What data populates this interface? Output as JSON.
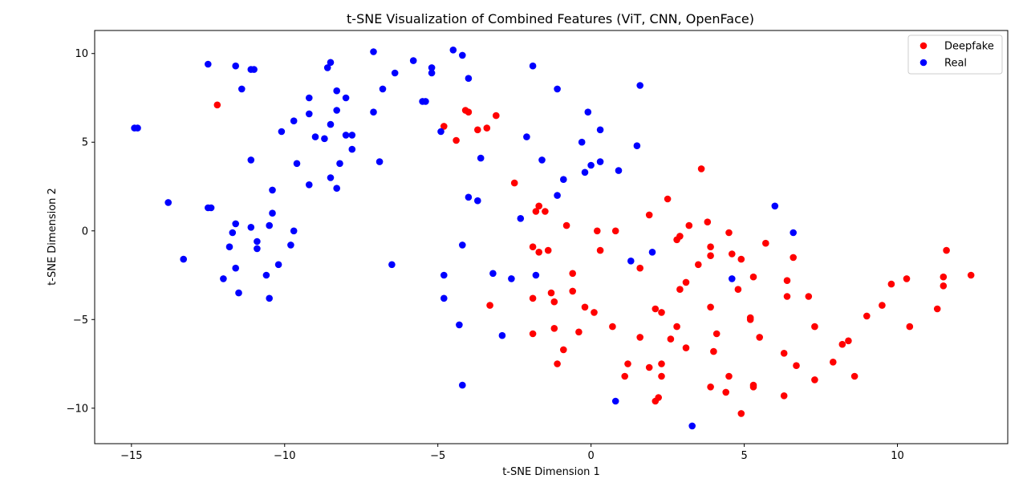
{
  "chart_data": {
    "type": "scatter",
    "title": "t-SNE Visualization of Combined Features (ViT, CNN, OpenFace)",
    "xlabel": "t-SNE Dimension 1",
    "ylabel": "t-SNE Dimension 2",
    "xlim": [
      -16.2,
      13.6
    ],
    "ylim": [
      -12.0,
      11.3
    ],
    "xticks": [
      -15,
      -10,
      -5,
      0,
      5,
      10
    ],
    "yticks": [
      -10,
      -5,
      0,
      5,
      10
    ],
    "xtick_labels": [
      "−15",
      "−10",
      "−5",
      "0",
      "5",
      "10"
    ],
    "ytick_labels": [
      "−10",
      "−5",
      "0",
      "5",
      "10"
    ],
    "grid": false,
    "legend": {
      "position": "upper right",
      "entries": [
        "Deepfake",
        "Real"
      ]
    },
    "series": [
      {
        "name": "Deepfake",
        "color": "#ff0000",
        "points": [
          [
            -12.2,
            7.1
          ],
          [
            -4.8,
            5.9
          ],
          [
            -4.4,
            5.1
          ],
          [
            -4.1,
            6.8
          ],
          [
            -4.0,
            6.7
          ],
          [
            -3.7,
            5.7
          ],
          [
            -3.4,
            5.8
          ],
          [
            -3.1,
            6.5
          ],
          [
            -2.5,
            2.7
          ],
          [
            3.6,
            3.5
          ],
          [
            -1.8,
            1.1
          ],
          [
            -1.7,
            1.4
          ],
          [
            -1.5,
            1.1
          ],
          [
            2.5,
            1.8
          ],
          [
            1.9,
            0.9
          ],
          [
            -0.8,
            0.3
          ],
          [
            0.2,
            0.0
          ],
          [
            0.8,
            0.0
          ],
          [
            3.8,
            0.5
          ],
          [
            3.2,
            0.3
          ],
          [
            4.5,
            -0.1
          ],
          [
            -1.9,
            -0.9
          ],
          [
            -1.7,
            -1.2
          ],
          [
            -1.4,
            -1.1
          ],
          [
            0.3,
            -1.1
          ],
          [
            2.9,
            -0.3
          ],
          [
            2.8,
            -0.5
          ],
          [
            3.9,
            -0.9
          ],
          [
            3.9,
            -1.4
          ],
          [
            5.7,
            -0.7
          ],
          [
            4.6,
            -1.3
          ],
          [
            4.9,
            -1.6
          ],
          [
            6.6,
            -1.5
          ],
          [
            -1.3,
            -3.5
          ],
          [
            -1.2,
            -4.0
          ],
          [
            -0.6,
            -2.4
          ],
          [
            -0.6,
            -3.4
          ],
          [
            -0.2,
            -4.3
          ],
          [
            0.1,
            -4.6
          ],
          [
            1.6,
            -2.1
          ],
          [
            3.5,
            -1.9
          ],
          [
            3.1,
            -2.9
          ],
          [
            2.9,
            -3.3
          ],
          [
            4.8,
            -3.3
          ],
          [
            5.3,
            -2.6
          ],
          [
            6.4,
            -2.8
          ],
          [
            6.4,
            -3.7
          ],
          [
            7.1,
            -3.7
          ],
          [
            -3.3,
            -4.2
          ],
          [
            -1.9,
            -3.8
          ],
          [
            -1.9,
            -5.8
          ],
          [
            -1.2,
            -5.5
          ],
          [
            -0.4,
            -5.7
          ],
          [
            -0.9,
            -6.7
          ],
          [
            -1.1,
            -7.5
          ],
          [
            0.7,
            -5.4
          ],
          [
            1.6,
            -6.0
          ],
          [
            2.1,
            -4.4
          ],
          [
            2.3,
            -4.6
          ],
          [
            2.8,
            -5.4
          ],
          [
            2.6,
            -6.1
          ],
          [
            3.1,
            -6.6
          ],
          [
            3.9,
            -4.3
          ],
          [
            4.1,
            -5.8
          ],
          [
            4.0,
            -6.8
          ],
          [
            5.2,
            -4.9
          ],
          [
            5.2,
            -5.0
          ],
          [
            5.5,
            -6.0
          ],
          [
            7.3,
            -5.4
          ],
          [
            1.2,
            -7.5
          ],
          [
            1.1,
            -8.2
          ],
          [
            1.9,
            -7.7
          ],
          [
            2.3,
            -7.5
          ],
          [
            2.3,
            -8.2
          ],
          [
            2.2,
            -9.4
          ],
          [
            2.1,
            -9.6
          ],
          [
            3.9,
            -8.8
          ],
          [
            4.5,
            -8.2
          ],
          [
            4.4,
            -9.1
          ],
          [
            4.9,
            -10.3
          ],
          [
            5.3,
            -8.7
          ],
          [
            5.3,
            -8.8
          ],
          [
            6.3,
            -6.9
          ],
          [
            6.7,
            -7.6
          ],
          [
            7.3,
            -8.4
          ],
          [
            6.3,
            -9.3
          ],
          [
            7.9,
            -7.4
          ],
          [
            8.2,
            -6.4
          ],
          [
            8.4,
            -6.2
          ],
          [
            8.6,
            -8.2
          ],
          [
            9.0,
            -4.8
          ],
          [
            9.5,
            -4.2
          ],
          [
            9.8,
            -3.0
          ],
          [
            10.3,
            -2.7
          ],
          [
            10.4,
            -5.4
          ],
          [
            11.3,
            -4.4
          ],
          [
            11.5,
            -2.6
          ],
          [
            11.5,
            -3.1
          ],
          [
            11.6,
            -1.1
          ],
          [
            12.4,
            -2.5
          ]
        ]
      },
      {
        "name": "Real",
        "color": "#0000ff",
        "points": [
          [
            -14.9,
            5.8
          ],
          [
            -14.8,
            5.8
          ],
          [
            -13.8,
            1.6
          ],
          [
            -13.3,
            -1.6
          ],
          [
            -12.5,
            9.4
          ],
          [
            -12.5,
            1.3
          ],
          [
            -12.4,
            1.3
          ],
          [
            -12.0,
            -2.7
          ],
          [
            -11.7,
            -0.1
          ],
          [
            -11.6,
            0.4
          ],
          [
            -11.6,
            -2.1
          ],
          [
            -11.5,
            -3.5
          ],
          [
            -11.8,
            -0.9
          ],
          [
            -11.6,
            9.3
          ],
          [
            -11.4,
            8.0
          ],
          [
            -11.1,
            9.1
          ],
          [
            -11.0,
            9.1
          ],
          [
            -11.1,
            4.0
          ],
          [
            -11.1,
            0.2
          ],
          [
            -10.9,
            -0.6
          ],
          [
            -10.9,
            -1.0
          ],
          [
            -10.6,
            -2.5
          ],
          [
            -10.5,
            -3.8
          ],
          [
            -10.5,
            0.3
          ],
          [
            -10.4,
            1.0
          ],
          [
            -10.4,
            2.3
          ],
          [
            -10.2,
            -1.9
          ],
          [
            -10.1,
            5.6
          ],
          [
            -9.7,
            6.2
          ],
          [
            -9.6,
            3.8
          ],
          [
            -9.7,
            0.0
          ],
          [
            -9.8,
            -0.8
          ],
          [
            -9.2,
            7.5
          ],
          [
            -9.2,
            6.6
          ],
          [
            -9.0,
            5.3
          ],
          [
            -9.2,
            2.6
          ],
          [
            -8.7,
            5.2
          ],
          [
            -8.6,
            9.2
          ],
          [
            -8.5,
            9.5
          ],
          [
            -8.3,
            7.9
          ],
          [
            -8.5,
            6.0
          ],
          [
            -8.5,
            3.0
          ],
          [
            -8.3,
            6.8
          ],
          [
            -8.3,
            2.4
          ],
          [
            -8.2,
            3.8
          ],
          [
            -8.0,
            7.5
          ],
          [
            -8.0,
            5.4
          ],
          [
            -7.8,
            5.4
          ],
          [
            -7.8,
            4.6
          ],
          [
            -7.1,
            10.1
          ],
          [
            -7.1,
            6.7
          ],
          [
            -6.9,
            3.9
          ],
          [
            -6.8,
            8.0
          ],
          [
            -6.5,
            -1.9
          ],
          [
            -6.4,
            8.9
          ],
          [
            -5.8,
            9.6
          ],
          [
            -5.5,
            7.3
          ],
          [
            -5.4,
            7.3
          ],
          [
            -5.2,
            8.9
          ],
          [
            -5.2,
            9.2
          ],
          [
            -4.9,
            5.6
          ],
          [
            -4.8,
            -2.5
          ],
          [
            -4.8,
            -3.8
          ],
          [
            -4.5,
            10.2
          ],
          [
            -4.3,
            -5.3
          ],
          [
            -4.2,
            9.9
          ],
          [
            -4.0,
            8.6
          ],
          [
            -4.0,
            1.9
          ],
          [
            -3.7,
            1.7
          ],
          [
            -3.6,
            4.1
          ],
          [
            -4.2,
            -0.8
          ],
          [
            -4.2,
            -8.7
          ],
          [
            -3.2,
            -2.4
          ],
          [
            -2.9,
            -5.9
          ],
          [
            -2.6,
            -2.7
          ],
          [
            -2.3,
            0.7
          ],
          [
            -2.1,
            5.3
          ],
          [
            -1.9,
            9.3
          ],
          [
            -1.6,
            4.0
          ],
          [
            -1.8,
            -2.5
          ],
          [
            -1.1,
            8.0
          ],
          [
            -1.1,
            2.0
          ],
          [
            -0.9,
            2.9
          ],
          [
            -0.3,
            5.0
          ],
          [
            -0.2,
            3.3
          ],
          [
            -0.1,
            6.7
          ],
          [
            0.0,
            3.7
          ],
          [
            0.3,
            5.7
          ],
          [
            0.3,
            3.9
          ],
          [
            0.9,
            3.4
          ],
          [
            1.3,
            -1.7
          ],
          [
            1.5,
            4.8
          ],
          [
            1.6,
            8.2
          ],
          [
            2.0,
            -1.2
          ],
          [
            0.8,
            -9.6
          ],
          [
            3.3,
            -11.0
          ],
          [
            4.6,
            -2.7
          ],
          [
            6.0,
            1.4
          ],
          [
            6.6,
            -0.1
          ]
        ]
      }
    ]
  }
}
